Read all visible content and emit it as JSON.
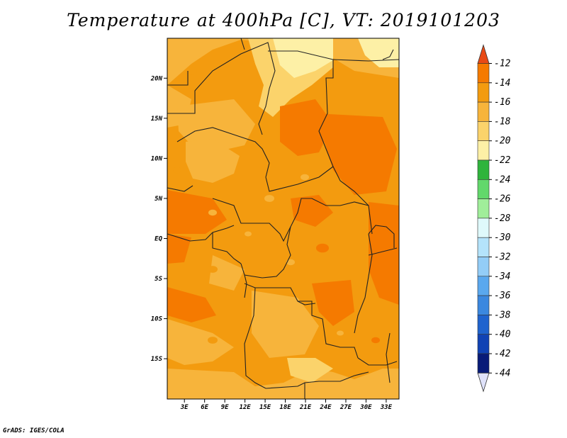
{
  "title": "Temperature at 400hPa [C], VT: 2019101203",
  "credit": "GrADS: IGES/COLA",
  "map": {
    "lat_ticks": [
      {
        "lat": 20,
        "label": "20N"
      },
      {
        "lat": 15,
        "label": "15N"
      },
      {
        "lat": 10,
        "label": "10N"
      },
      {
        "lat": 5,
        "label": "5N"
      },
      {
        "lat": 0,
        "label": "EQ"
      },
      {
        "lat": -5,
        "label": "5S"
      },
      {
        "lat": -10,
        "label": "10S"
      },
      {
        "lat": -15,
        "label": "15S"
      }
    ],
    "lon_ticks": [
      {
        "lon": 3,
        "label": "3E"
      },
      {
        "lon": 6,
        "label": "6E"
      },
      {
        "lon": 9,
        "label": "9E"
      },
      {
        "lon": 12,
        "label": "12E"
      },
      {
        "lon": 15,
        "label": "15E"
      },
      {
        "lon": 18,
        "label": "18E"
      },
      {
        "lon": 21,
        "label": "21E"
      },
      {
        "lon": 24,
        "label": "24E"
      },
      {
        "lon": 27,
        "label": "27E"
      },
      {
        "lon": 30,
        "label": "30E"
      },
      {
        "lon": 33,
        "label": "33E"
      }
    ]
  },
  "colorbar": {
    "labels": [
      "-12",
      "-14",
      "-16",
      "-18",
      "-20",
      "-22",
      "-24",
      "-26",
      "-28",
      "-30",
      "-32",
      "-34",
      "-36",
      "-38",
      "-40",
      "-42",
      "-44"
    ],
    "colors": [
      "#e34a16",
      "#f57a00",
      "#f39b0f",
      "#f7b43b",
      "#fbd36b",
      "#fdf0a6",
      "#2fb43c",
      "#62d86b",
      "#a0ee9a",
      "#dff9fb",
      "#b4e3fb",
      "#93cdf7",
      "#5aa8ee",
      "#3b88df",
      "#1f63ce",
      "#1042b4",
      "#081b78"
    ],
    "top_arrow_color": "#e84a16",
    "bottom_arrow_color": "#dfe2fa"
  }
}
